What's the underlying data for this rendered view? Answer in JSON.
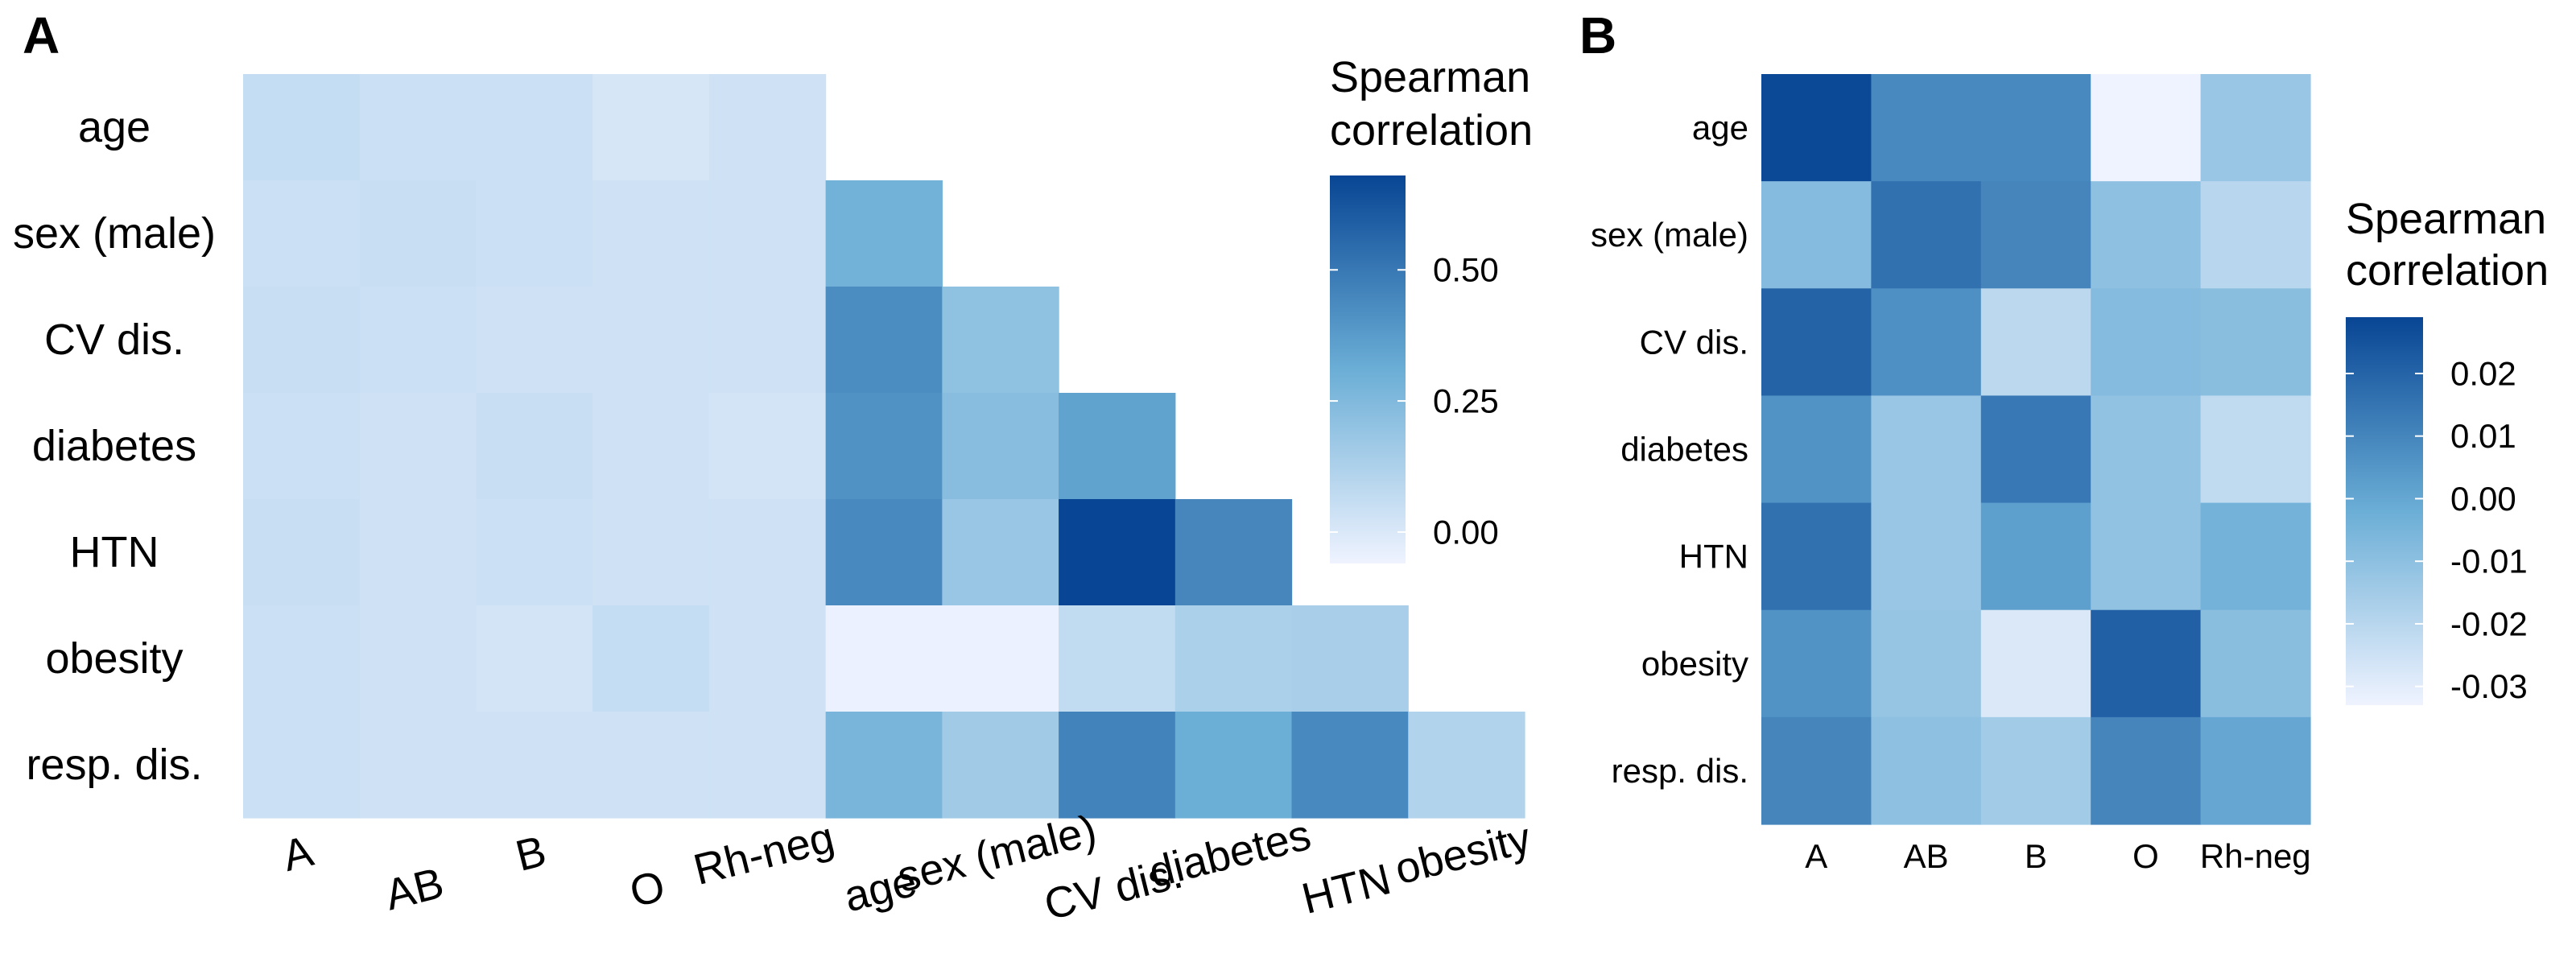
{
  "chart_data": [
    {
      "panel": "A",
      "type": "heatmap",
      "rows": [
        "age",
        "sex (male)",
        "CV dis.",
        "diabetes",
        "HTN",
        "obesity",
        "resp. dis."
      ],
      "columns": [
        "A",
        "AB",
        "B",
        "O",
        "Rh-neg",
        "age",
        "sex (male)",
        "CV dis.",
        "diabetes",
        "HTN",
        "obesity"
      ],
      "values": [
        [
          0.06,
          0.04,
          0.04,
          0.01,
          0.03,
          null,
          null,
          null,
          null,
          null,
          null
        ],
        [
          0.04,
          0.05,
          0.04,
          0.03,
          0.03,
          0.29,
          null,
          null,
          null,
          null,
          null
        ],
        [
          0.05,
          0.04,
          0.03,
          0.03,
          0.03,
          0.43,
          0.21,
          null,
          null,
          null,
          null
        ],
        [
          0.04,
          0.03,
          0.05,
          0.03,
          0.02,
          0.41,
          0.23,
          0.35,
          null,
          null,
          null
        ],
        [
          0.05,
          0.03,
          0.04,
          0.03,
          0.03,
          0.44,
          0.18,
          0.68,
          0.45,
          null,
          null
        ],
        [
          0.04,
          0.03,
          0.02,
          0.06,
          0.03,
          -0.05,
          -0.05,
          0.07,
          0.13,
          0.14,
          null
        ],
        [
          0.04,
          0.03,
          0.03,
          0.03,
          0.03,
          0.27,
          0.16,
          0.46,
          0.31,
          0.44,
          0.11
        ]
      ],
      "legend": {
        "title_lines": [
          "Spearman",
          "correlation"
        ],
        "ticks": [
          0.5,
          0.25,
          0.0
        ],
        "tick_labels": [
          "0.50",
          "0.25",
          "0.00"
        ],
        "range": [
          -0.06,
          0.68
        ]
      }
    },
    {
      "panel": "B",
      "type": "heatmap",
      "rows": [
        "age",
        "sex (male)",
        "CV dis.",
        "diabetes",
        "HTN",
        "obesity",
        "resp. dis."
      ],
      "columns": [
        "A",
        "AB",
        "B",
        "O",
        "Rh-neg"
      ],
      "values": [
        [
          0.028,
          0.009,
          0.009,
          -0.033,
          -0.013
        ],
        [
          -0.008,
          0.016,
          0.01,
          -0.01,
          -0.02
        ],
        [
          0.02,
          0.007,
          -0.021,
          -0.008,
          -0.009
        ],
        [
          0.006,
          -0.013,
          0.014,
          -0.011,
          -0.022
        ],
        [
          0.016,
          -0.013,
          0.002,
          -0.011,
          -0.004
        ],
        [
          0.006,
          -0.012,
          -0.028,
          0.021,
          -0.009
        ],
        [
          0.01,
          -0.01,
          -0.015,
          0.01,
          0.0
        ]
      ],
      "legend": {
        "title_lines": [
          "Spearman",
          "correlation"
        ],
        "ticks": [
          0.02,
          0.01,
          0.0,
          -0.01,
          -0.02,
          -0.03
        ],
        "tick_labels": [
          "0.02",
          "0.01",
          "0.00",
          "-0.01",
          "-0.02",
          "-0.03"
        ],
        "range": [
          -0.033,
          0.029
        ]
      }
    }
  ]
}
